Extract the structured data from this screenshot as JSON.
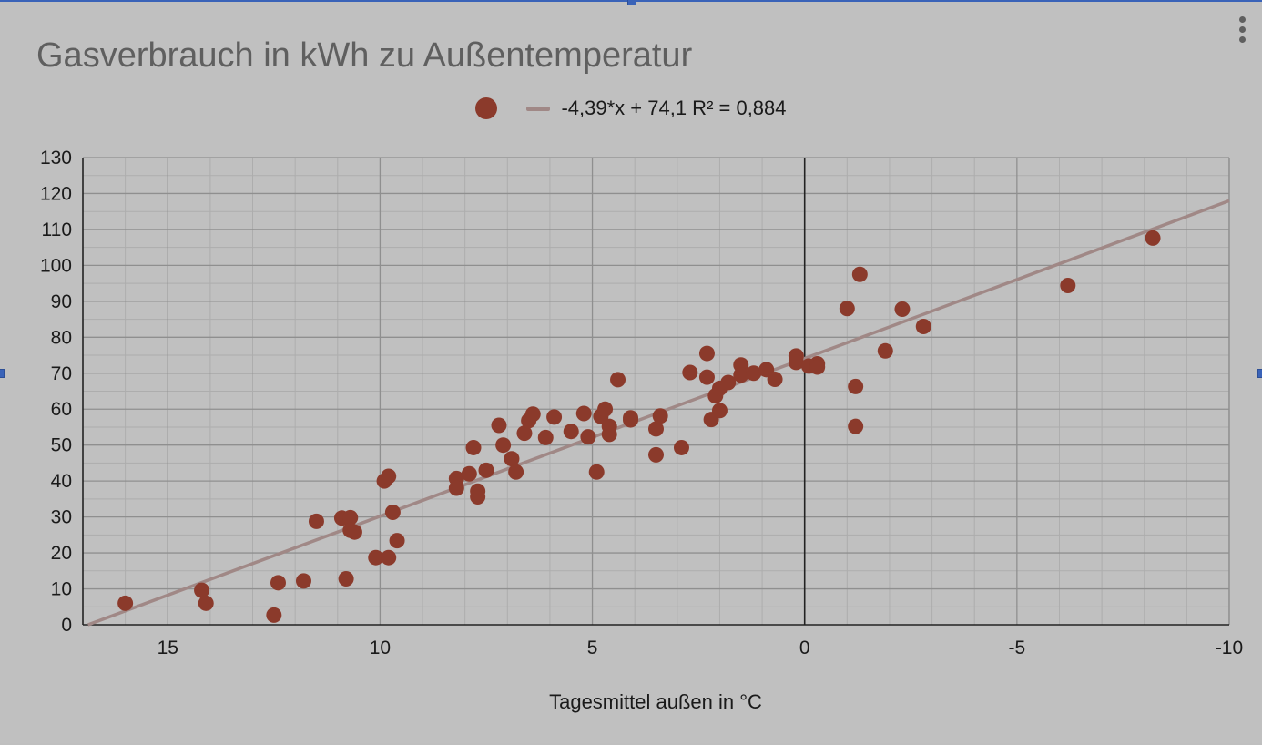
{
  "chart_data": {
    "type": "scatter",
    "title": "Gasverbrauch in kWh zu Außentemperatur",
    "xlabel": "Tagesmittel außen in °C",
    "ylabel": "",
    "xlim": [
      17,
      -10
    ],
    "ylim": [
      0,
      130
    ],
    "x_reversed": true,
    "x_ticks": [
      15,
      10,
      5,
      0,
      -5,
      -10
    ],
    "x_tick_labels": [
      "15",
      "10",
      "5",
      "0",
      "-5",
      "-10"
    ],
    "y_ticks": [
      0,
      10,
      20,
      30,
      40,
      50,
      60,
      70,
      80,
      90,
      100,
      110,
      120,
      130
    ],
    "y_tick_labels": [
      "0",
      "10",
      "20",
      "30",
      "40",
      "50",
      "60",
      "70",
      "80",
      "90",
      "100",
      "110",
      "120",
      "130"
    ],
    "grid": true,
    "legend_position": "top",
    "series": [
      {
        "name": "",
        "color": "#8b3a2b",
        "points": [
          [
            16.0,
            6.0
          ],
          [
            14.2,
            9.6
          ],
          [
            14.1,
            6.0
          ],
          [
            12.5,
            2.7
          ],
          [
            12.4,
            11.7
          ],
          [
            11.8,
            12.2
          ],
          [
            11.5,
            28.8
          ],
          [
            10.9,
            29.7
          ],
          [
            10.8,
            12.8
          ],
          [
            10.7,
            29.8
          ],
          [
            10.7,
            26.3
          ],
          [
            10.6,
            25.8
          ],
          [
            10.1,
            18.7
          ],
          [
            9.9,
            40.0
          ],
          [
            9.8,
            41.3
          ],
          [
            9.8,
            18.7
          ],
          [
            9.7,
            31.3
          ],
          [
            9.6,
            23.4
          ],
          [
            8.2,
            40.7
          ],
          [
            8.2,
            38.0
          ],
          [
            7.9,
            42.0
          ],
          [
            7.8,
            49.3
          ],
          [
            7.7,
            37.2
          ],
          [
            7.7,
            35.6
          ],
          [
            7.5,
            43.0
          ],
          [
            7.2,
            55.5
          ],
          [
            7.1,
            50.0
          ],
          [
            6.9,
            46.2
          ],
          [
            6.8,
            42.5
          ],
          [
            6.6,
            53.3
          ],
          [
            6.5,
            56.8
          ],
          [
            6.4,
            58.6
          ],
          [
            6.1,
            52.1
          ],
          [
            5.9,
            57.8
          ],
          [
            5.5,
            53.8
          ],
          [
            5.2,
            58.8
          ],
          [
            5.1,
            52.3
          ],
          [
            4.9,
            42.5
          ],
          [
            4.8,
            58.0
          ],
          [
            4.7,
            60.0
          ],
          [
            4.6,
            55.2
          ],
          [
            4.6,
            53.0
          ],
          [
            4.4,
            68.2
          ],
          [
            4.1,
            57.6
          ],
          [
            4.1,
            57.0
          ],
          [
            3.5,
            54.5
          ],
          [
            3.5,
            47.3
          ],
          [
            3.4,
            58.1
          ],
          [
            2.9,
            49.3
          ],
          [
            2.7,
            70.2
          ],
          [
            2.3,
            75.5
          ],
          [
            2.3,
            68.9
          ],
          [
            2.2,
            57.1
          ],
          [
            2.1,
            63.7
          ],
          [
            2.0,
            65.8
          ],
          [
            2.0,
            59.6
          ],
          [
            1.8,
            67.4
          ],
          [
            1.5,
            72.3
          ],
          [
            1.5,
            69.5
          ],
          [
            1.2,
            70.0
          ],
          [
            0.9,
            71.0
          ],
          [
            0.7,
            68.3
          ],
          [
            0.2,
            74.8
          ],
          [
            0.2,
            73.0
          ],
          [
            -0.1,
            72.0
          ],
          [
            -0.3,
            72.6
          ],
          [
            -0.3,
            71.7
          ],
          [
            -1.0,
            88.0
          ],
          [
            -1.2,
            66.3
          ],
          [
            -1.2,
            55.2
          ],
          [
            -1.3,
            97.5
          ],
          [
            -1.9,
            76.2
          ],
          [
            -2.3,
            87.8
          ],
          [
            -2.8,
            83.0
          ],
          [
            -6.2,
            94.4
          ],
          [
            -8.2,
            107.6
          ]
        ]
      }
    ],
    "trendline": {
      "label": "-4,39*x + 74,1 R² = 0,884",
      "slope": -4.39,
      "intercept": 74.1,
      "r_squared": 0.884,
      "color": "#a08886"
    }
  }
}
